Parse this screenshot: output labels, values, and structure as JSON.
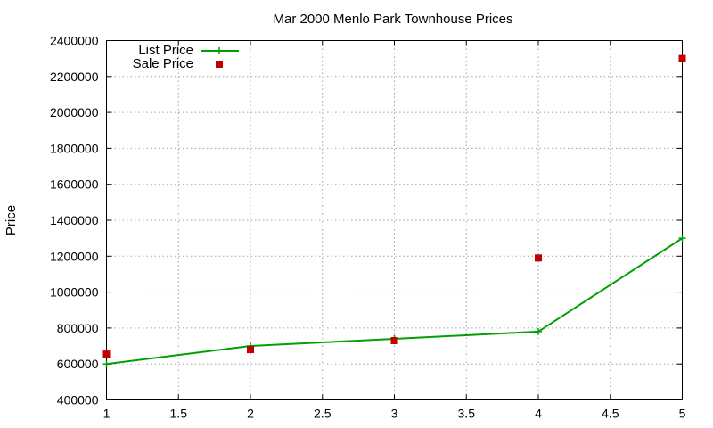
{
  "chart_data": {
    "type": "line",
    "title": "Mar 2000 Menlo Park Townhouse Prices",
    "xlabel": "",
    "ylabel": "Price",
    "xlim": [
      1,
      5
    ],
    "ylim": [
      400000,
      2400000
    ],
    "xticks": [
      1,
      1.5,
      2,
      2.5,
      3,
      3.5,
      4,
      4.5,
      5
    ],
    "xtick_labels": [
      "1",
      "1.5",
      "2",
      "2.5",
      "3",
      "3.5",
      "4",
      "4.5",
      "5"
    ],
    "yticks": [
      400000,
      600000,
      800000,
      1000000,
      1200000,
      1400000,
      1600000,
      1800000,
      2000000,
      2200000,
      2400000
    ],
    "ytick_labels": [
      "400000",
      "600000",
      "800000",
      "1000000",
      "1200000",
      "1400000",
      "1600000",
      "1800000",
      "2000000",
      "2200000",
      "2400000"
    ],
    "grid": true,
    "legend_position": "top-left",
    "series": [
      {
        "name": "List Price",
        "style": "line-with-plus-markers",
        "color": "#00a000",
        "x": [
          1,
          2,
          3,
          4,
          5
        ],
        "y": [
          600000,
          700000,
          740000,
          780000,
          1300000
        ]
      },
      {
        "name": "Sale Price",
        "style": "square-markers",
        "color": "#c00000",
        "x": [
          1,
          2,
          3,
          4,
          5
        ],
        "y": [
          655000,
          680000,
          730000,
          1190000,
          2300000
        ]
      }
    ]
  }
}
